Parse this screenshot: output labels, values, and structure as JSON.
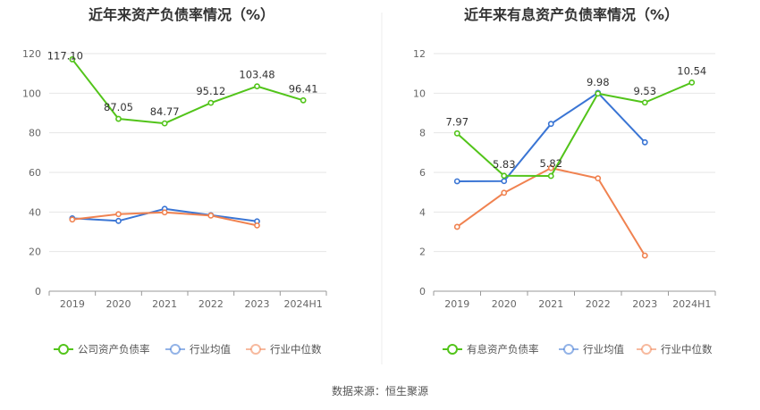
{
  "source": "数据来源：恒生聚源",
  "chart_data": [
    {
      "type": "line",
      "title": "近年来资产负债率情况（%）",
      "categories": [
        "2019",
        "2020",
        "2021",
        "2022",
        "2023",
        "2024H1"
      ],
      "ylim": [
        0,
        120
      ],
      "yticks": [
        0,
        20,
        40,
        60,
        80,
        100,
        120
      ],
      "grid": true,
      "legend_position": "bottom",
      "series": [
        {
          "name": "公司资产负债率",
          "color": "#52c41a",
          "values": [
            117.1,
            87.05,
            84.77,
            95.12,
            103.48,
            96.41
          ],
          "labels": [
            "117.10",
            "87.05",
            "84.77",
            "95.12",
            "103.48",
            "96.41"
          ]
        },
        {
          "name": "行业均值",
          "color": "#3a75d4",
          "values": [
            36.8,
            35.5,
            41.6,
            38.4,
            35.3,
            null
          ]
        },
        {
          "name": "行业中位数",
          "color": "#f08250",
          "values": [
            36.2,
            38.9,
            39.8,
            38.2,
            33.2,
            null
          ]
        }
      ]
    },
    {
      "type": "line",
      "title": "近年来有息资产负债率情况（%）",
      "categories": [
        "2019",
        "2020",
        "2021",
        "2022",
        "2023",
        "2024H1"
      ],
      "ylim": [
        0,
        12
      ],
      "yticks": [
        0,
        2,
        4,
        6,
        8,
        10,
        12
      ],
      "grid": true,
      "legend_position": "bottom",
      "series": [
        {
          "name": "有息资产负债率",
          "color": "#52c41a",
          "values": [
            7.97,
            5.83,
            5.82,
            9.98,
            9.53,
            10.54
          ],
          "labels": [
            "7.97",
            "5.83",
            "5.82",
            "9.98",
            "9.53",
            "10.54"
          ]
        },
        {
          "name": "行业均值",
          "color": "#3a75d4",
          "values": [
            5.55,
            5.56,
            8.45,
            10.02,
            7.52,
            null
          ]
        },
        {
          "name": "行业中位数",
          "color": "#f08250",
          "values": [
            3.25,
            4.97,
            6.22,
            5.7,
            1.8,
            null
          ]
        }
      ]
    }
  ]
}
